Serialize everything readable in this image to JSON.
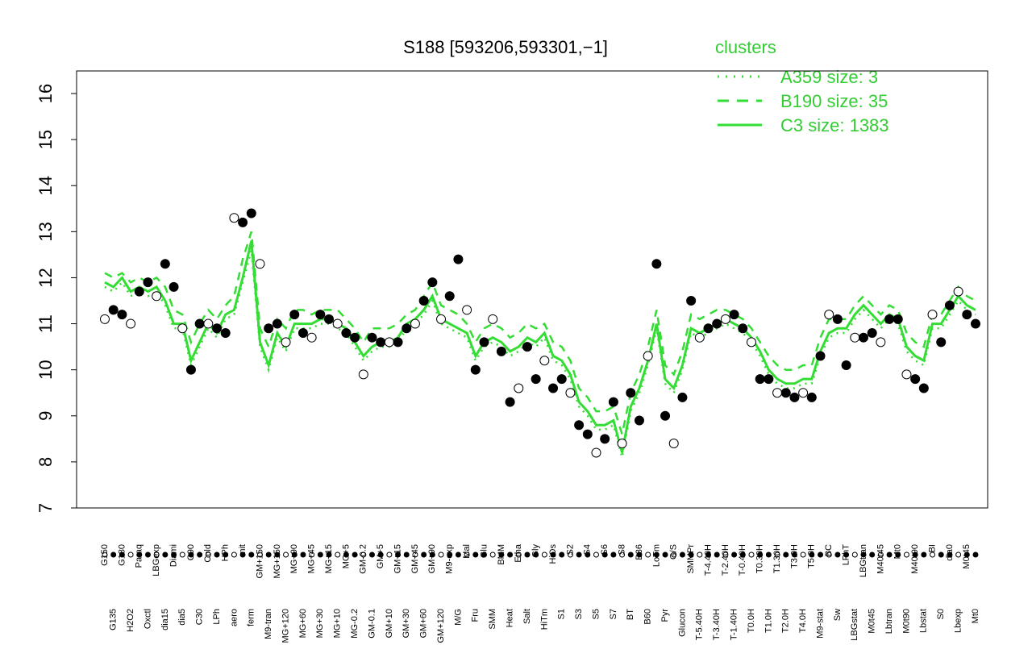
{
  "chart_data": {
    "type": "line",
    "title": "S188 [593206,593301,−1]",
    "xlabel": "",
    "ylabel": "",
    "ylim": [
      7,
      16
    ],
    "yticks": [
      7,
      8,
      9,
      10,
      11,
      12,
      13,
      14,
      15,
      16
    ],
    "legend": {
      "title": "clusters",
      "position": "top-right",
      "entries": [
        {
          "label": "A359 size: 3",
          "style": "dotted"
        },
        {
          "label": "B190 size: 35",
          "style": "dashed"
        },
        {
          "label": "C3 size: 1383",
          "style": "solid"
        }
      ]
    },
    "colors": {
      "series": "#33dd33",
      "axis": "#000000",
      "open_point": "#ffffff",
      "filled_point": "#000000"
    },
    "categories_upper": [
      "G150",
      "G135",
      "G180",
      "H2O2",
      "Paraq",
      "Oxctl",
      "LBGexp",
      "dia15",
      "Diami",
      "dia5",
      "C90",
      "C30",
      "Cold",
      "LPh",
      "HPh",
      "aero",
      "nit",
      "ferm",
      "GM+150",
      "M9-tran",
      "MG+150",
      "MG+120",
      "MG+90",
      "MG+60",
      "MG+45",
      "MG+30",
      "MG+15",
      "MG+10",
      "MG+5",
      "MG-0.2",
      "GM-0.2",
      "GM-0.1",
      "GM+5",
      "GM+10",
      "GM+15",
      "GM+30",
      "GM+45",
      "GM+60",
      "GM+90",
      "GM+120",
      "M9-exp",
      "M/G",
      "Mal",
      "Fru",
      "Glu",
      "SMM",
      "BMM",
      "Heat",
      "Etha",
      "Salt",
      "Gly",
      "HiTm",
      "HiOs",
      "S1",
      "S2",
      "S3",
      "S4",
      "S5",
      "S6",
      "S7",
      "S8",
      "BT",
      "B36",
      "B60",
      "LoTm",
      "Pyr",
      "G/S",
      "Glucon",
      "SMMPr",
      "T-5.40H",
      "T-4.40H",
      "T-3.40H",
      "T-2.40H",
      "T-1.40H",
      "T-0.40H",
      "T0.0H",
      "T0.30H",
      "T1.0H",
      "T1.30H",
      "T2.0H",
      "T3.0H",
      "T4.0H",
      "T5.0H",
      "M9-stat",
      "BC",
      "Sw",
      "LPhT",
      "LBGstat",
      "LBGtran",
      "M0t45",
      "M40t45",
      "Lbtran",
      "Mt0",
      "M0t90",
      "M40t90",
      "Lbstat",
      "BI",
      "S0",
      "dia0",
      "Lbexp",
      "M0t45",
      "Mt0"
    ],
    "y_points": [
      11.1,
      11.3,
      11.2,
      11.0,
      11.7,
      11.9,
      11.6,
      12.3,
      11.8,
      10.9,
      10.0,
      11.0,
      11.0,
      10.9,
      10.8,
      13.3,
      13.2,
      13.4,
      12.3,
      10.9,
      11.0,
      10.6,
      11.2,
      10.8,
      10.7,
      11.2,
      11.1,
      11.0,
      10.8,
      10.7,
      9.9,
      10.7,
      10.6,
      10.6,
      10.6,
      10.9,
      11.0,
      11.5,
      11.9,
      11.1,
      11.6,
      12.4,
      11.3,
      10.0,
      10.6,
      11.1,
      10.4,
      9.3,
      9.6,
      10.5,
      9.8,
      10.2,
      9.6,
      9.8,
      9.5,
      8.8,
      8.6,
      8.2,
      8.5,
      9.3,
      8.4,
      9.5,
      8.9,
      10.3,
      12.3,
      9.0,
      8.4,
      9.4,
      11.5,
      10.7,
      10.9,
      11.0,
      11.1,
      11.2,
      10.9,
      10.6,
      9.8,
      9.8,
      9.5,
      9.5,
      9.4,
      9.5,
      9.4,
      10.3,
      11.2,
      11.1,
      10.1,
      10.7,
      10.7,
      10.8,
      10.6,
      11.1,
      11.1,
      9.9,
      9.8,
      9.6,
      11.2,
      10.6,
      11.4,
      11.7,
      11.2,
      11.0
    ],
    "series": [
      {
        "name": "C3 size: 1383",
        "style": "solid",
        "values": [
          11.9,
          11.8,
          12.0,
          11.7,
          11.8,
          11.7,
          11.8,
          11.5,
          11.0,
          11.0,
          10.2,
          10.6,
          11.0,
          10.8,
          11.2,
          11.3,
          12.0,
          12.8,
          10.6,
          10.1,
          10.8,
          10.5,
          11.0,
          11.0,
          11.0,
          11.1,
          11.1,
          11.0,
          10.9,
          10.6,
          10.3,
          10.5,
          10.6,
          10.6,
          10.7,
          11.0,
          11.1,
          11.3,
          11.6,
          11.1,
          11.0,
          10.9,
          10.8,
          10.3,
          10.6,
          10.7,
          10.6,
          10.4,
          10.5,
          10.7,
          10.6,
          10.8,
          10.3,
          10.2,
          9.9,
          9.3,
          9.1,
          8.8,
          8.8,
          8.9,
          8.2,
          9.2,
          9.6,
          10.2,
          11.0,
          9.8,
          9.6,
          10.1,
          10.9,
          10.8,
          10.9,
          11.0,
          11.1,
          11.0,
          10.9,
          10.7,
          10.4,
          10.0,
          9.8,
          9.7,
          9.7,
          9.8,
          9.8,
          10.4,
          10.8,
          10.9,
          10.9,
          11.2,
          11.4,
          11.2,
          11.0,
          11.2,
          11.1,
          10.5,
          10.3,
          10.2,
          11.0,
          11.0,
          11.3,
          11.6,
          11.4,
          11.3
        ]
      },
      {
        "name": "B190 size: 35",
        "style": "dashed",
        "values": [
          12.1,
          12.0,
          12.1,
          11.9,
          12.0,
          11.9,
          12.0,
          11.8,
          11.3,
          11.2,
          10.6,
          11.0,
          11.3,
          11.1,
          11.4,
          11.6,
          12.4,
          13.0,
          10.9,
          10.5,
          11.1,
          10.9,
          11.3,
          11.3,
          11.2,
          11.3,
          11.3,
          11.3,
          11.1,
          10.9,
          10.6,
          10.9,
          10.9,
          10.9,
          11.0,
          11.2,
          11.3,
          11.6,
          11.9,
          11.4,
          11.3,
          11.2,
          11.0,
          10.6,
          10.9,
          11.0,
          10.9,
          10.7,
          10.8,
          11.0,
          10.9,
          11.0,
          10.6,
          10.5,
          10.2,
          9.6,
          9.4,
          9.1,
          9.1,
          9.2,
          8.6,
          9.5,
          9.9,
          10.5,
          11.3,
          10.1,
          9.9,
          10.4,
          11.2,
          11.1,
          11.2,
          11.3,
          11.3,
          11.2,
          11.1,
          10.9,
          10.6,
          10.3,
          10.1,
          10.0,
          10.0,
          10.1,
          10.1,
          10.7,
          11.1,
          11.1,
          11.1,
          11.4,
          11.6,
          11.4,
          11.2,
          11.4,
          11.3,
          10.8,
          10.6,
          10.5,
          11.2,
          11.2,
          11.5,
          11.8,
          11.6,
          11.5
        ]
      },
      {
        "name": "A359 size: 3",
        "style": "dotted",
        "values": [
          11.8,
          11.7,
          11.9,
          11.6,
          11.7,
          11.6,
          11.7,
          11.4,
          10.9,
          10.9,
          10.1,
          10.5,
          10.9,
          10.7,
          11.1,
          11.2,
          11.9,
          12.6,
          10.5,
          10.0,
          10.7,
          10.4,
          10.9,
          10.9,
          10.9,
          11.0,
          11.0,
          10.9,
          10.8,
          10.5,
          10.2,
          10.4,
          10.5,
          10.5,
          10.6,
          10.9,
          11.0,
          11.2,
          11.5,
          11.0,
          10.9,
          10.8,
          10.7,
          10.2,
          10.5,
          10.6,
          10.5,
          10.3,
          10.4,
          10.6,
          10.5,
          10.7,
          10.2,
          10.1,
          9.8,
          9.2,
          9.0,
          8.7,
          8.7,
          8.8,
          8.1,
          9.1,
          9.5,
          10.1,
          10.9,
          9.7,
          9.5,
          10.0,
          10.8,
          10.7,
          10.8,
          10.9,
          11.0,
          10.9,
          10.8,
          10.6,
          10.3,
          9.9,
          9.7,
          9.6,
          9.6,
          9.7,
          9.7,
          10.3,
          10.7,
          10.8,
          10.8,
          11.1,
          11.3,
          11.1,
          10.9,
          11.1,
          11.0,
          10.4,
          10.2,
          10.1,
          10.9,
          10.9,
          11.2,
          11.5,
          11.3,
          11.2
        ]
      }
    ]
  }
}
